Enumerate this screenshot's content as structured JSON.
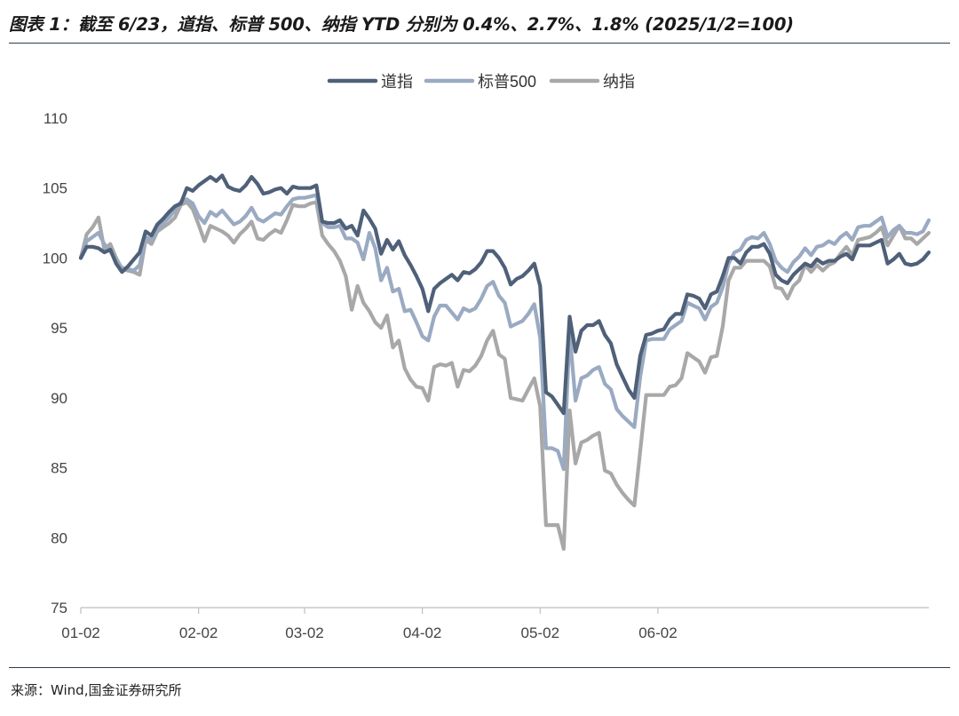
{
  "title": "图表 1：截至 6/23，道指、标普 500、纳指 YTD 分别为 0.4%、2.7%、1.8% (2025/1/2=100)",
  "source": "来源：Wind,国金证券研究所",
  "chart_data": {
    "type": "line",
    "xlabel": "",
    "ylabel": "",
    "ylim": [
      75,
      110
    ],
    "yticks": [
      75,
      80,
      85,
      90,
      95,
      100,
      105,
      110
    ],
    "xtick_labels": [
      "01-02",
      "02-02",
      "03-02",
      "04-02",
      "05-02",
      "06-02"
    ],
    "xtick_index": [
      0,
      20,
      38,
      58,
      78,
      98
    ],
    "grid": false,
    "legend_position": "top-center",
    "series": [
      {
        "name": "道指",
        "color": "#4f6079",
        "values": [
          100.0,
          100.8,
          100.8,
          100.7,
          100.4,
          100.6,
          99.6,
          99.0,
          99.4,
          99.9,
          100.4,
          101.9,
          101.6,
          102.4,
          102.8,
          103.3,
          103.7,
          103.9,
          105.0,
          104.8,
          105.2,
          105.5,
          105.8,
          105.5,
          105.9,
          105.1,
          104.9,
          104.8,
          105.2,
          105.8,
          105.3,
          104.6,
          104.7,
          104.9,
          105.0,
          104.6,
          105.1,
          105.0,
          105.0,
          105.0,
          105.2,
          102.6,
          102.5,
          102.5,
          102.7,
          102.1,
          102.3,
          101.6,
          103.4,
          102.8,
          102.1,
          100.3,
          101.3,
          100.6,
          101.2,
          100.2,
          99.5,
          98.7,
          97.8,
          96.2,
          97.8,
          98.2,
          98.5,
          98.8,
          98.4,
          99.0,
          98.9,
          99.2,
          99.7,
          100.5,
          100.5,
          100.0,
          99.3,
          98.1,
          98.5,
          98.7,
          99.1,
          99.6,
          98.0,
          90.4,
          90.1,
          89.5,
          88.9,
          95.8,
          93.3,
          94.8,
          95.2,
          95.2,
          95.5,
          94.5,
          93.9,
          92.4,
          91.5,
          90.6,
          90.0,
          93.0,
          94.5,
          94.6,
          94.8,
          94.9,
          95.6,
          96.0,
          96.0,
          97.4,
          97.3,
          97.1,
          96.4,
          97.4,
          97.6,
          98.7,
          100.0,
          100.0,
          99.6,
          100.4,
          100.8,
          100.8,
          101.0,
          100.3,
          98.8,
          98.4,
          98.2,
          98.8,
          99.2,
          99.6,
          99.4,
          99.9,
          99.6,
          99.8,
          99.8,
          100.1,
          100.3,
          99.9,
          100.9,
          100.9,
          100.9,
          101.1,
          101.3,
          99.6,
          99.9,
          100.3,
          99.6,
          99.5,
          99.6,
          99.9,
          100.4
        ]
      },
      {
        "name": "标普500",
        "color": "#9aaac2",
        "values": [
          100.0,
          101.2,
          101.5,
          101.8,
          101.0,
          100.5,
          99.8,
          99.3,
          99.2,
          99.1,
          99.5,
          101.5,
          101.3,
          102.1,
          102.5,
          102.9,
          103.4,
          104.0,
          104.2,
          103.9,
          103.0,
          102.5,
          103.3,
          103.0,
          103.4,
          102.9,
          102.4,
          102.6,
          103.0,
          103.6,
          102.8,
          102.6,
          102.9,
          103.2,
          103.1,
          103.7,
          104.2,
          104.3,
          104.3,
          104.4,
          104.5,
          102.5,
          102.2,
          102.2,
          102.3,
          101.4,
          101.4,
          101.1,
          99.9,
          101.8,
          100.7,
          98.4,
          99.3,
          97.6,
          97.8,
          96.2,
          96.3,
          95.4,
          94.4,
          94.1,
          95.8,
          96.6,
          96.6,
          96.1,
          95.6,
          96.4,
          96.2,
          96.4,
          97.1,
          98.0,
          98.3,
          97.3,
          96.8,
          95.1,
          95.3,
          95.5,
          96.0,
          96.7,
          94.3,
          86.4,
          86.4,
          86.2,
          84.9,
          94.6,
          89.8,
          91.4,
          91.6,
          92.0,
          92.2,
          91.0,
          90.6,
          89.2,
          88.7,
          88.3,
          87.9,
          91.5,
          94.1,
          94.2,
          94.2,
          94.2,
          94.9,
          95.2,
          95.5,
          96.8,
          96.6,
          96.4,
          95.6,
          96.5,
          96.8,
          97.9,
          99.6,
          100.4,
          100.6,
          101.3,
          101.5,
          101.4,
          101.8,
          101.0,
          99.8,
          99.3,
          99.0,
          99.7,
          100.1,
          100.7,
          100.2,
          100.8,
          100.9,
          101.2,
          101.0,
          101.5,
          101.8,
          101.3,
          102.2,
          102.3,
          102.3,
          102.6,
          102.9,
          101.5,
          102.0,
          102.3,
          101.8,
          101.8,
          101.7,
          101.9,
          102.7
        ]
      },
      {
        "name": "纳指",
        "color": "#a8a8a8",
        "values": [
          100.0,
          101.7,
          102.2,
          102.9,
          100.6,
          101.0,
          100.0,
          99.2,
          99.1,
          99.0,
          98.8,
          101.3,
          101.0,
          101.9,
          102.2,
          102.5,
          102.9,
          103.8,
          104.0,
          103.5,
          102.4,
          101.2,
          102.3,
          102.1,
          101.9,
          101.6,
          101.1,
          101.7,
          102.1,
          102.6,
          101.4,
          101.3,
          101.7,
          102.0,
          101.8,
          102.7,
          103.8,
          103.7,
          103.7,
          103.9,
          104.0,
          101.6,
          101.0,
          100.5,
          99.8,
          98.7,
          96.3,
          98.0,
          96.8,
          96.2,
          95.4,
          95.0,
          95.9,
          93.6,
          94.1,
          92.1,
          91.3,
          90.8,
          90.7,
          89.8,
          92.2,
          92.4,
          92.3,
          92.5,
          90.8,
          92.0,
          91.9,
          92.3,
          93.0,
          94.1,
          94.8,
          93.1,
          92.8,
          90.0,
          89.9,
          89.8,
          90.6,
          91.4,
          89.4,
          80.9,
          80.9,
          80.9,
          79.2,
          89.1,
          85.3,
          86.8,
          87.0,
          87.3,
          87.5,
          84.8,
          84.6,
          83.8,
          83.2,
          82.7,
          82.3,
          86.2,
          90.2,
          90.2,
          90.2,
          90.2,
          90.8,
          90.9,
          91.4,
          93.2,
          92.9,
          92.6,
          91.8,
          92.9,
          93.0,
          95.1,
          98.4,
          99.3,
          99.3,
          99.8,
          99.8,
          99.8,
          99.8,
          99.4,
          97.9,
          97.8,
          97.1,
          98.0,
          98.4,
          99.5,
          99.0,
          99.5,
          99.1,
          99.5,
          99.7,
          100.3,
          100.8,
          100.2,
          101.3,
          101.4,
          101.5,
          101.8,
          102.2,
          100.9,
          101.6,
          102.3,
          101.4,
          101.4,
          101.0,
          101.4,
          101.8
        ]
      }
    ]
  }
}
